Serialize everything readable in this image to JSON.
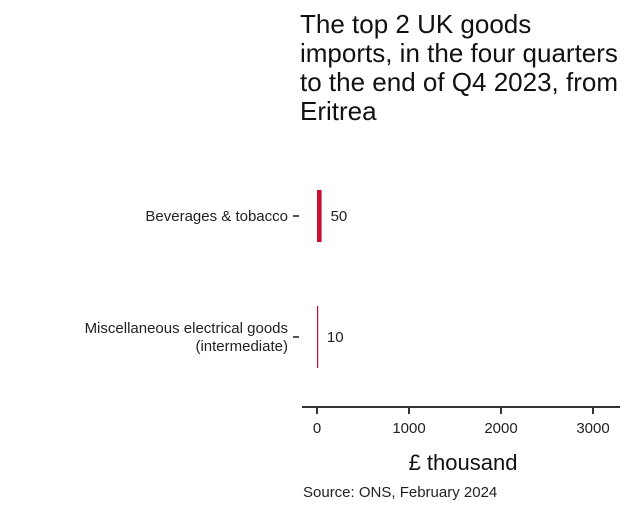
{
  "chart_data": {
    "type": "bar",
    "orientation": "horizontal",
    "title": "The top 2 UK goods imports, in the four quarters to the end of Q4 2023, from Eritrea",
    "categories": [
      "Beverages & tobacco",
      "Miscellaneous electrical goods (intermediate)"
    ],
    "category_lines": [
      [
        "Beverages & tobacco"
      ],
      [
        "Miscellaneous electrical goods",
        "(intermediate)"
      ]
    ],
    "values": [
      50,
      10
    ],
    "data_labels": [
      "50",
      "10"
    ],
    "xlabel": "£ thousand",
    "ylabel": "",
    "xlim": [
      0,
      3200
    ],
    "xticks": [
      0,
      1000,
      2000,
      3000
    ],
    "xtick_labels": [
      "0",
      "1000",
      "2000",
      "3000"
    ],
    "bar_color": "#c8102e",
    "grid": false,
    "source": "Source: ONS, February 2024"
  }
}
